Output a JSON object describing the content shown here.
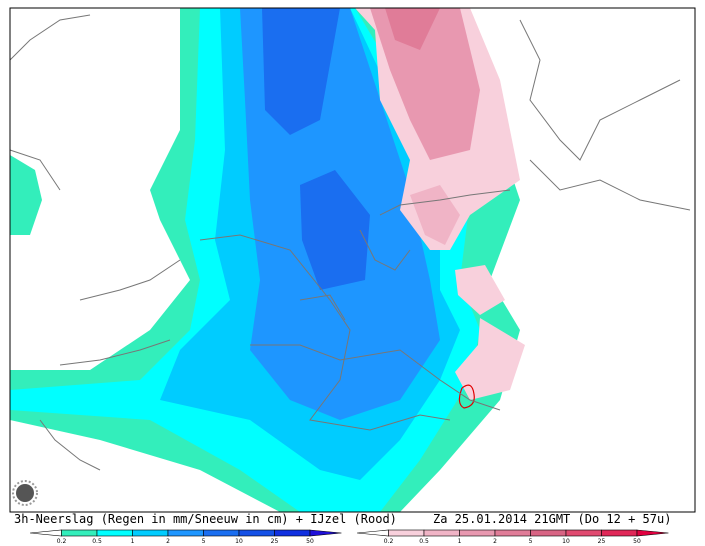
{
  "caption": {
    "product": "3h-Neerslag (Regen in mm/Sneeuw in cm) + IJzel (Rood)",
    "valid_time": "Za 25.01.2014 21GMT (Do 12 + 57u)"
  },
  "legend_rain": {
    "labels": [
      "0.2",
      "0.5",
      "1",
      "2",
      "5",
      "10",
      "25",
      "50"
    ],
    "colors": [
      "#ffffff",
      "#33eebb",
      "#00ffff",
      "#00ccff",
      "#1e96ff",
      "#1a6ef0",
      "#1450e6",
      "#1030e0",
      "#2010d8"
    ]
  },
  "legend_ice": {
    "labels": [
      "0.2",
      "0.5",
      "1",
      "2",
      "5",
      "10",
      "25",
      "50"
    ],
    "colors": [
      "#ffffff",
      "#f8d0dc",
      "#f0b4c6",
      "#e898b0",
      "#e07c98",
      "#d86484",
      "#e04a70",
      "#e02858",
      "#e00040"
    ]
  }
}
